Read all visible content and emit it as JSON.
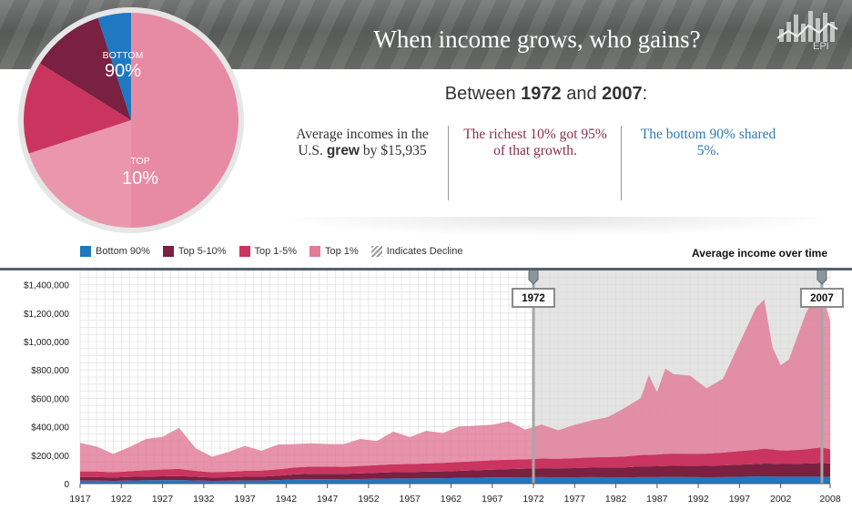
{
  "header": {
    "title": "When income grows, who gains?",
    "logo_text": "EPI"
  },
  "summary": {
    "prefix": "Between ",
    "start_year": "1972",
    "middle": " and ",
    "end_year": "2007",
    "suffix": ":",
    "stat1_part1": "Average incomes in the U.S. ",
    "stat1_bold": "grew",
    "stat1_part2": " by $15,935",
    "stat2": "The richest 10% got 95% of that growth.",
    "stat3": "The bottom 90% shared 5%."
  },
  "pie": {
    "bottom_label": "BOTTOM",
    "bottom_value": "90%",
    "top_label": "TOP",
    "top_value": "10%"
  },
  "legend": {
    "items": [
      {
        "label": "Bottom 90%",
        "color": "#1f78c1"
      },
      {
        "label": "Top 5-10%",
        "color": "#7a2040"
      },
      {
        "label": "Top 1-5%",
        "color": "#c9355e"
      },
      {
        "label": "Top 1%",
        "color": "#e07b98"
      },
      {
        "label": "Indicates Decline",
        "color": "#9a9a9a"
      }
    ],
    "avg_title": "Average income over time"
  },
  "chart_data": {
    "type": "area",
    "title": "Average income over time",
    "stacked": true,
    "x": [
      1917,
      1919,
      1921,
      1923,
      1925,
      1927,
      1929,
      1931,
      1933,
      1935,
      1937,
      1939,
      1941,
      1943,
      1945,
      1947,
      1949,
      1951,
      1953,
      1955,
      1957,
      1959,
      1961,
      1963,
      1965,
      1967,
      1969,
      1971,
      1973,
      1975,
      1977,
      1979,
      1981,
      1983,
      1985,
      1986,
      1987,
      1988,
      1989,
      1991,
      1993,
      1995,
      1997,
      1999,
      2000,
      2001,
      2002,
      2003,
      2005,
      2006,
      2007,
      2008
    ],
    "series": [
      {
        "name": "Bottom 90%",
        "color": "#1f78c1",
        "values": [
          21000,
          21000,
          19000,
          22000,
          23000,
          24000,
          25000,
          22000,
          19000,
          20000,
          22000,
          22000,
          25000,
          30000,
          31000,
          31000,
          30000,
          32000,
          34000,
          36000,
          36000,
          37000,
          38000,
          40000,
          42000,
          43000,
          44000,
          45000,
          46000,
          44000,
          45000,
          46000,
          45000,
          44000,
          46000,
          46000,
          46000,
          47000,
          47000,
          46000,
          45000,
          46000,
          48000,
          50000,
          51000,
          50000,
          49000,
          49000,
          49000,
          49000,
          49000,
          47000
        ]
      },
      {
        "name": "Top 5-10%",
        "color": "#7a2040",
        "values": [
          25000,
          25000,
          24000,
          25000,
          26000,
          27000,
          28000,
          26000,
          24000,
          25000,
          26000,
          27000,
          30000,
          35000,
          38000,
          38000,
          38000,
          40000,
          42000,
          44000,
          45000,
          47000,
          48000,
          50000,
          52000,
          55000,
          58000,
          60000,
          62000,
          63000,
          64000,
          66000,
          68000,
          70000,
          75000,
          75000,
          76000,
          77000,
          78000,
          78000,
          80000,
          82000,
          85000,
          88000,
          90000,
          90000,
          89000,
          89000,
          92000,
          94000,
          96000,
          95000
        ]
      },
      {
        "name": "Top 1-5%",
        "color": "#c9355e",
        "values": [
          40000,
          40000,
          36000,
          40000,
          45000,
          48000,
          50000,
          42000,
          36000,
          38000,
          42000,
          42000,
          45000,
          48000,
          50000,
          50000,
          50000,
          52000,
          54000,
          56000,
          57000,
          58000,
          60000,
          62000,
          64000,
          66000,
          66000,
          66000,
          68000,
          68000,
          70000,
          72000,
          74000,
          76000,
          80000,
          82000,
          82000,
          85000,
          86000,
          86000,
          86000,
          90000,
          95000,
          100000,
          105000,
          100000,
          95000,
          95000,
          100000,
          105000,
          110000,
          100000
        ]
      },
      {
        "name": "Top 1%",
        "color": "#e07b98",
        "values": [
          200000,
          175000,
          130000,
          170000,
          220000,
          230000,
          290000,
          160000,
          110000,
          140000,
          175000,
          140000,
          175000,
          165000,
          165000,
          160000,
          160000,
          190000,
          170000,
          230000,
          190000,
          230000,
          210000,
          250000,
          250000,
          250000,
          270000,
          210000,
          240000,
          200000,
          235000,
          260000,
          280000,
          340000,
          400000,
          560000,
          440000,
          600000,
          560000,
          550000,
          460000,
          520000,
          760000,
          1000000,
          1050000,
          720000,
          600000,
          640000,
          950000,
          1060000,
          1110000,
          900000
        ]
      }
    ],
    "ylim": [
      0,
      1500000
    ],
    "y_ticks": [
      0,
      200000,
      400000,
      600000,
      800000,
      1000000,
      1200000,
      1400000
    ],
    "y_tick_labels": [
      "0",
      "$200,000",
      "$400,000",
      "$600,000",
      "$800,000",
      "$1,000,000",
      "$1,200,000",
      "$1,400,000"
    ],
    "x_tick_labels": [
      "1917",
      "1922",
      "1927",
      "1932",
      "1937",
      "1942",
      "1947",
      "1952",
      "1957",
      "1962",
      "1967",
      "1972",
      "1977",
      "1982",
      "1987",
      "1992",
      "1997",
      "2002",
      "2008"
    ],
    "x_ticks": [
      1917,
      1922,
      1927,
      1932,
      1937,
      1942,
      1947,
      1952,
      1957,
      1962,
      1967,
      1972,
      1977,
      1982,
      1987,
      1992,
      1997,
      2002,
      2008
    ],
    "highlight_range": [
      1972,
      2007
    ],
    "markers": [
      {
        "year": 1972,
        "label": "1972"
      },
      {
        "year": 2007,
        "label": "2007"
      }
    ]
  }
}
